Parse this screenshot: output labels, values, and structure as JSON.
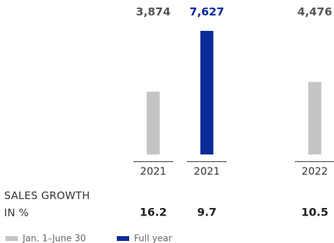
{
  "chart_data": {
    "type": "bar",
    "categories": [
      "2021",
      "2021",
      "2022"
    ],
    "series": [
      {
        "name": "Jan. 1–June 30",
        "color": "#c4c4c4",
        "label_color": "#555555",
        "values": [
          3874,
          null,
          4476
        ],
        "value_labels": [
          "3,874",
          null,
          "4,476"
        ]
      },
      {
        "name": "Full year",
        "color": "#0b2a9a",
        "label_color": "#0b2a9a",
        "values": [
          null,
          7627,
          null
        ],
        "value_labels": [
          null,
          "7,627",
          null
        ]
      }
    ],
    "growth": {
      "label": "SALES GROWTH IN %",
      "values": [
        16.2,
        9.7,
        10.5
      ]
    }
  }
}
